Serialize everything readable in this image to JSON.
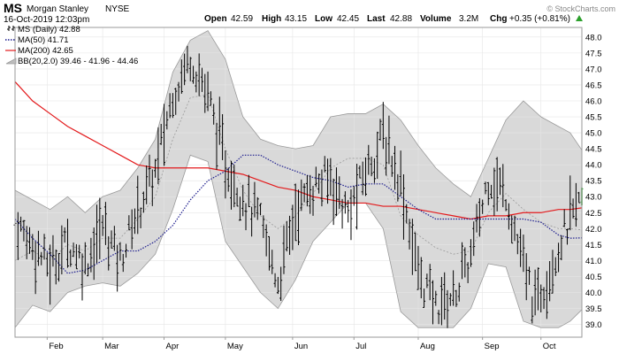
{
  "header": {
    "symbol": "MS",
    "company": "Morgan Stanley",
    "exchange": "NYSE",
    "timestamp": "16-Oct-2019 12:03pm",
    "open_label": "Open",
    "open_value": "42.59",
    "high_label": "High",
    "high_value": "43.15",
    "low_label": "Low",
    "low_value": "42.45",
    "last_label": "Last",
    "last_value": "42.88",
    "volume_label": "Volume",
    "volume_value": "3.2M",
    "chg_label": "Chg",
    "chg_value": "+0.35 (+0.81%)",
    "watermark": "© StockCharts.com",
    "up_arrow_icon": "triangle-up-icon"
  },
  "legend": [
    {
      "text": "MS (Daily) 42.88",
      "color": "#000000",
      "style": "ohlc"
    },
    {
      "text": "MA(50) 41.71",
      "color": "#1f1f8f",
      "style": "dotted"
    },
    {
      "text": "MA(200) 42.65",
      "color": "#e31a1c",
      "style": "solid"
    },
    {
      "text": "BB(20,2.0) 39.46 - 41.96 - 44.46",
      "color": "#9a9a9a",
      "style": "band"
    }
  ],
  "colors": {
    "band_fill": "#d9d9d9",
    "band_edge": "#9a9a9a",
    "ma50": "#1f1f8f",
    "ma200": "#e31a1c",
    "bars": "#000000",
    "last_bar": "#2ca02c",
    "grid": "#e6e6e6",
    "positive": "#2ca02c"
  },
  "chart_data": {
    "type": "line",
    "title": "",
    "ylabel": "",
    "xlabel": "",
    "ylim": [
      38.6,
      48.3
    ],
    "yticks": [
      "39.0",
      "39.5",
      "40.0",
      "40.5",
      "41.0",
      "41.5",
      "42.0",
      "42.5",
      "43.0",
      "43.5",
      "44.0",
      "44.5",
      "45.0",
      "45.5",
      "46.0",
      "46.5",
      "47.0",
      "47.5",
      "48.0"
    ],
    "month_labels": [
      {
        "label": "Feb",
        "x": 11
      },
      {
        "label": "Mar",
        "x": 30
      },
      {
        "label": "Apr",
        "x": 51
      },
      {
        "label": "May",
        "x": 72
      },
      {
        "label": "Jun",
        "x": 95
      },
      {
        "label": "Jul",
        "x": 116
      },
      {
        "label": "Aug",
        "x": 138
      },
      {
        "label": "Sep",
        "x": 160
      },
      {
        "label": "Oct",
        "x": 180
      }
    ],
    "x_range": [
      0,
      194
    ],
    "series": [
      {
        "name": "MS (Daily) 42.88",
        "kind": "close",
        "x": [
          0,
          6,
          12,
          18,
          24,
          30,
          36,
          42,
          48,
          54,
          60,
          66,
          72,
          78,
          84,
          90,
          96,
          102,
          108,
          114,
          120,
          126,
          132,
          138,
          144,
          150,
          156,
          162,
          168,
          174,
          178,
          182,
          186,
          190,
          194
        ],
        "values": [
          42.2,
          41.5,
          40.8,
          41.6,
          40.9,
          42.1,
          41.0,
          42.6,
          43.8,
          46.2,
          47.4,
          46.2,
          44.0,
          43.0,
          42.2,
          40.3,
          42.6,
          43.3,
          43.6,
          42.4,
          43.8,
          44.9,
          43.5,
          40.6,
          39.6,
          39.9,
          41.1,
          43.6,
          43.1,
          40.8,
          39.6,
          40.5,
          41.4,
          42.3,
          42.9
        ]
      },
      {
        "name": "MA(50) 41.71",
        "kind": "ma50",
        "x": [
          0,
          6,
          12,
          18,
          24,
          30,
          36,
          42,
          48,
          54,
          60,
          66,
          72,
          78,
          84,
          90,
          96,
          102,
          108,
          114,
          120,
          126,
          132,
          138,
          144,
          150,
          156,
          162,
          168,
          174,
          180,
          186,
          190,
          194
        ],
        "values": [
          42.3,
          41.7,
          41.2,
          40.6,
          40.7,
          41.0,
          41.3,
          41.3,
          41.6,
          42.1,
          42.9,
          43.5,
          43.8,
          44.3,
          44.3,
          44.0,
          43.8,
          43.6,
          43.5,
          43.3,
          43.4,
          43.4,
          43.0,
          42.6,
          42.3,
          42.3,
          42.3,
          42.3,
          42.3,
          42.3,
          42.2,
          41.8,
          41.7,
          41.71
        ]
      },
      {
        "name": "MA(200) 42.65",
        "kind": "ma200",
        "x": [
          0,
          6,
          12,
          18,
          24,
          30,
          36,
          42,
          48,
          54,
          60,
          66,
          72,
          78,
          84,
          90,
          96,
          102,
          108,
          114,
          120,
          126,
          132,
          138,
          144,
          150,
          156,
          162,
          168,
          174,
          180,
          186,
          190,
          194
        ],
        "values": [
          46.6,
          46.0,
          45.6,
          45.2,
          44.9,
          44.6,
          44.3,
          44.0,
          43.9,
          43.9,
          43.9,
          43.9,
          43.8,
          43.7,
          43.5,
          43.3,
          43.2,
          43.0,
          42.9,
          42.8,
          42.8,
          42.7,
          42.7,
          42.6,
          42.5,
          42.4,
          42.3,
          42.4,
          42.4,
          42.5,
          42.5,
          42.6,
          42.6,
          42.65
        ]
      },
      {
        "name": "BB upper",
        "kind": "bb_upper",
        "x": [
          0,
          6,
          12,
          18,
          24,
          30,
          36,
          42,
          48,
          54,
          60,
          66,
          72,
          78,
          84,
          90,
          96,
          102,
          108,
          114,
          120,
          126,
          132,
          138,
          144,
          150,
          156,
          162,
          168,
          174,
          180,
          186,
          190,
          194
        ],
        "values": [
          43.2,
          42.9,
          42.6,
          43.0,
          42.5,
          43.0,
          43.2,
          43.9,
          44.8,
          46.9,
          47.9,
          48.2,
          47.3,
          45.5,
          44.8,
          44.6,
          44.5,
          44.6,
          45.5,
          45.6,
          45.6,
          45.9,
          45.4,
          44.6,
          43.9,
          43.4,
          43.0,
          44.2,
          45.4,
          46.0,
          45.5,
          45.2,
          45.0,
          44.46
        ]
      },
      {
        "name": "BB lower",
        "kind": "bb_lower",
        "x": [
          0,
          6,
          12,
          18,
          24,
          30,
          36,
          42,
          48,
          54,
          60,
          66,
          72,
          78,
          84,
          90,
          96,
          102,
          108,
          114,
          120,
          126,
          132,
          138,
          144,
          150,
          156,
          162,
          168,
          174,
          180,
          186,
          190,
          194
        ],
        "values": [
          38.9,
          39.6,
          39.4,
          40.0,
          40.2,
          40.3,
          40.2,
          40.6,
          41.2,
          42.6,
          44.3,
          44.1,
          41.6,
          40.8,
          40.0,
          39.5,
          40.4,
          41.6,
          42.2,
          42.8,
          42.8,
          42.0,
          39.4,
          38.9,
          38.9,
          38.9,
          39.5,
          40.9,
          40.8,
          39.1,
          38.9,
          38.9,
          39.1,
          39.46
        ]
      },
      {
        "name": "BB middle",
        "kind": "bb_mid",
        "x": [
          0,
          6,
          12,
          18,
          24,
          30,
          36,
          42,
          48,
          54,
          60,
          66,
          72,
          78,
          84,
          90,
          96,
          102,
          108,
          114,
          120,
          126,
          132,
          138,
          144,
          150,
          156,
          162,
          168,
          174,
          180,
          186,
          190,
          194
        ],
        "values": [
          41.0,
          41.3,
          41.0,
          41.5,
          41.3,
          41.7,
          41.7,
          42.3,
          43.0,
          44.8,
          46.1,
          46.2,
          44.5,
          43.2,
          42.4,
          42.0,
          42.4,
          43.1,
          43.9,
          44.2,
          44.2,
          44.0,
          42.4,
          41.8,
          41.4,
          41.2,
          41.3,
          42.5,
          43.1,
          42.6,
          42.2,
          42.0,
          42.0,
          41.96
        ]
      }
    ]
  }
}
